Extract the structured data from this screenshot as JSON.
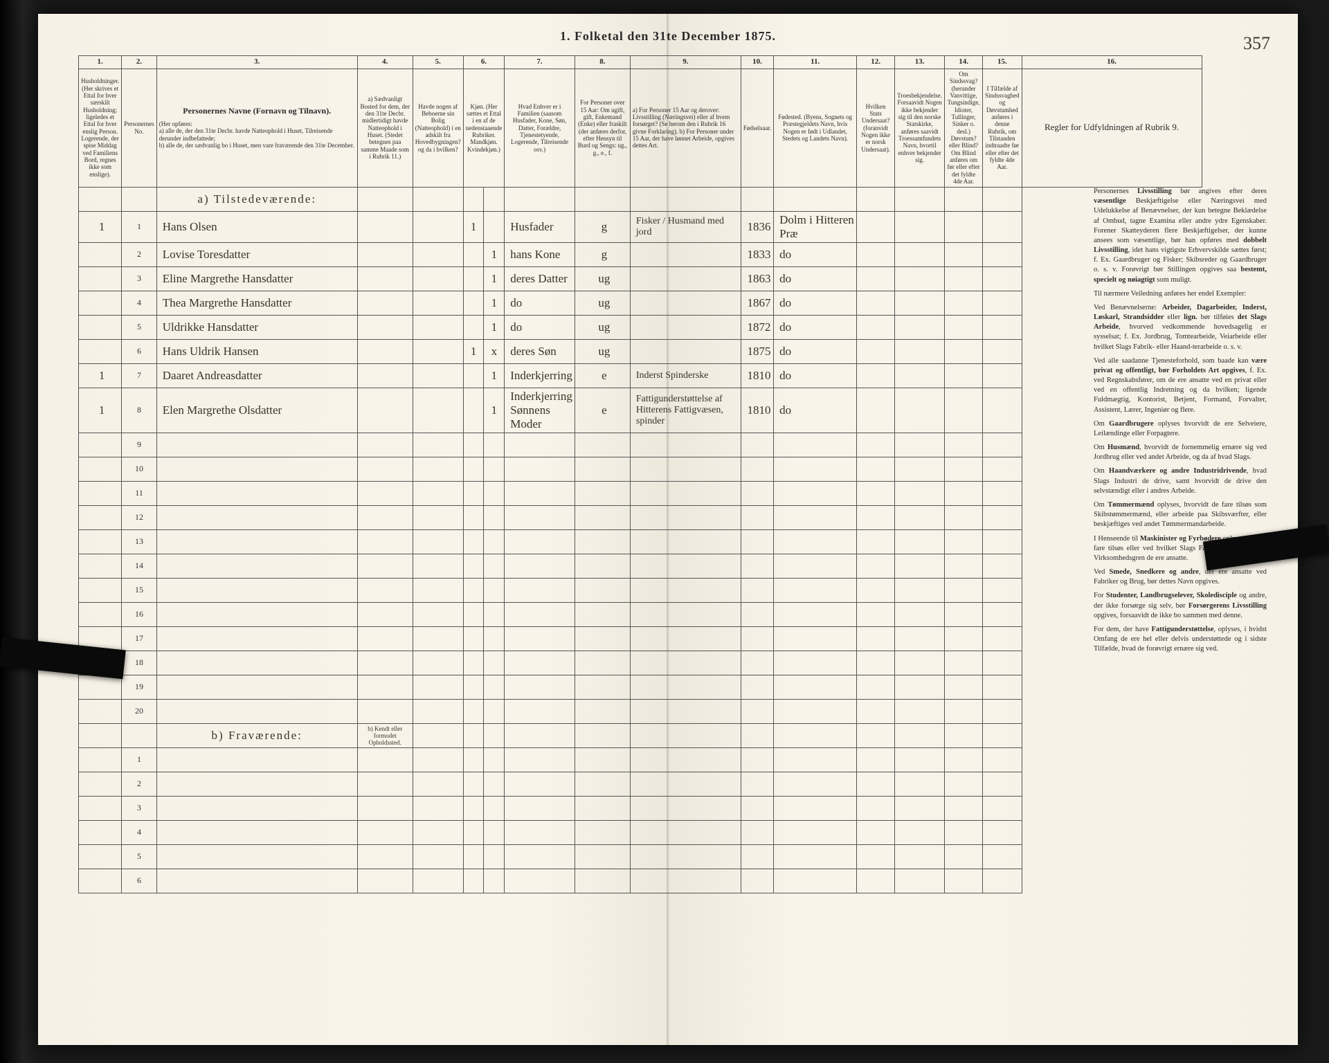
{
  "title": "1.  Folketal den 31te December 1875.",
  "page_number_handwritten": "357",
  "colors": {
    "paper": "#f5f1e6",
    "ink_print": "#2a2a2a",
    "ink_hand": "#3b3326",
    "rule": "#555555",
    "background": "#1a1a1a"
  },
  "column_numbers": [
    "1.",
    "2.",
    "3.",
    "4.",
    "5.",
    "6.",
    "7.",
    "8.",
    "9.",
    "10.",
    "11.",
    "12.",
    "13.",
    "14.",
    "15.",
    "16."
  ],
  "headers": {
    "c1": "Husholdninger. (Her skrives et Ettal for hver særskilt Husholdning; ligeledes et Ettal for hver enslig Person. Logerende, der spise Middag ved Familiens Bord, regnes ikke som enslige).",
    "c2": "Personernes No.",
    "c3_title": "Personernes Navne (Fornavn og Tilnavn).",
    "c3_sub": "(Her opføres:\na) alle de, der den 31te Decbr. havde Natteophold i Huset, Tilreisende derunder indbefattede;\nb) alle de, der sædvanlig bo i Huset, men vare fraværende den 31te December.",
    "c4": "a) Sædvanligt Bosted for dem, der den 31te Decbr. midlertidigt havde Natteophold i Huset. (Stedet betegnes paa samme Maade som i Rubrik 11.)",
    "c5": "Havde nogen af Beboerne sin Bolig (Natteophold) i en adskilt fra Hovedbygningen? og da i hvilken?",
    "c6": "Kjøn. (Her sættes et Ettal i en af de nedenstaaende Rubriker. Mandkjøn. Kvindekjøn.)",
    "c7": "Hvad Enhver er i Familien (saasom Husfader, Kone, Søn, Datter, Forældre, Tjenestetyende, Logerende, Tilreisende osv.)",
    "c8": "For Personer over 15 Aar: Om ugift, gift, Enkemand (Enke) eller fraskilt (der anføres derfor, efter Hensyn til Burd og Sengs: ug., g., e., f.",
    "c9": "a) For Personer 15 Aar og derover: Livsstilling (Næringsvei) eller af hvem forsørget? (Se herom den i Rubrik 16 givne Forklaring).\nb) For Personer under 15 Aar, der have lønnet Arbeide, opgives dettes Art.",
    "c10": "Fødselsaar.",
    "c11": "Fødested. (Byens, Sognets og Præstegjeldets Navn, hvis Nogen er født i Udlandet, Stedets og Landets Navn).",
    "c12": "Hvilken Stats Undersaat? (foranvidt Nogen ikke er norsk Undersaat).",
    "c13": "Troesbekjendelse. Forsaavidt Nogen ikke bekjender sig til den norske Statskirke, anføres saavidt Troessamfundets Navn, hvortil enhver bekjender sig.",
    "c14": "Om Sindssvag? (herunder Vanvittige, Tungsindige, Idioter, Tullinger, Sinker o. desl.) Døvstum? eller Blind? Om Blind anføres om før eller efter det fyldte 4de Aar.",
    "c15": "I Tilfælde af Sindssvaghed og Døvstumhed anføres i denne Rubrik, om Tilstanden indtraadte før eller efter det fyldte 4de Aar.",
    "c16": "Regler for Udfyldningen af Rubrik 9."
  },
  "section_a_label": "a) Tilstedeværende:",
  "section_b_label": "b) Fraværende:",
  "section_b_col4": "b) Kendt eller formodet Opholdssted.",
  "rows_a": [
    {
      "hh": "1",
      "no": "1",
      "name": "Hans Olsen",
      "mk": "1",
      "kk": "",
      "fam": "Husfader",
      "civ": "g",
      "occ": "Fisker / Husmand med jord",
      "yr": "1836",
      "born": "Dolm i Hitteren Præ",
      "col12": "",
      "col13": "",
      "col14": "",
      "col15": ""
    },
    {
      "hh": "",
      "no": "2",
      "name": "Lovise Toresdatter",
      "mk": "",
      "kk": "1",
      "fam": "hans Kone",
      "civ": "g",
      "occ": "",
      "yr": "1833",
      "born": "do",
      "col12": "",
      "col13": "",
      "col14": "",
      "col15": ""
    },
    {
      "hh": "",
      "no": "3",
      "name": "Eline Margrethe Hansdatter",
      "mk": "",
      "kk": "1",
      "fam": "deres Datter",
      "civ": "ug",
      "occ": "",
      "yr": "1863",
      "born": "do",
      "col12": "",
      "col13": "",
      "col14": "",
      "col15": ""
    },
    {
      "hh": "",
      "no": "4",
      "name": "Thea Margrethe Hansdatter",
      "mk": "",
      "kk": "1",
      "fam": "do",
      "civ": "ug",
      "occ": "",
      "yr": "1867",
      "born": "do",
      "col12": "",
      "col13": "",
      "col14": "",
      "col15": ""
    },
    {
      "hh": "",
      "no": "5",
      "name": "Uldrikke Hansdatter",
      "mk": "",
      "kk": "1",
      "fam": "do",
      "civ": "ug",
      "occ": "",
      "yr": "1872",
      "born": "do",
      "col12": "",
      "col13": "",
      "col14": "",
      "col15": ""
    },
    {
      "hh": "",
      "no": "6",
      "name": "Hans Uldrik Hansen",
      "mk": "1",
      "kk": "x",
      "fam": "deres Søn",
      "civ": "ug",
      "occ": "",
      "yr": "1875",
      "born": "do",
      "col12": "",
      "col13": "",
      "col14": "",
      "col15": ""
    },
    {
      "hh": "1",
      "no": "7",
      "name": "Daaret Andreasdatter",
      "mk": "",
      "kk": "1",
      "fam": "Inderkjerring",
      "civ": "e",
      "occ": "Inderst Spinderske",
      "yr": "1810",
      "born": "do",
      "col12": "",
      "col13": "",
      "col14": "",
      "col15": ""
    },
    {
      "hh": "1",
      "no": "8",
      "name": "Elen Margrethe Olsdatter",
      "mk": "",
      "kk": "1",
      "fam": "Inderkjerring Sønnens Moder",
      "civ": "e",
      "occ": "Fattigunderstøttelse af Hitterens Fattigvæsen, spinder",
      "yr": "1810",
      "born": "do",
      "col12": "",
      "col13": "",
      "col14": "",
      "col15": ""
    }
  ],
  "empty_a_rows": [
    "9",
    "10",
    "11",
    "12",
    "13",
    "14",
    "15",
    "16",
    "17",
    "18",
    "19",
    "20"
  ],
  "empty_b_rows": [
    "1",
    "2",
    "3",
    "4",
    "5",
    "6"
  ],
  "rules_paragraphs": [
    "Personernes <b>Livsstilling</b> bør angives efter deres <b>væsentlige</b> Beskjæftigelse eller Næringsvei med Udelukkelse af Benævnelser, der kun betegne Beklædelse af Ombud, tagne Examina eller andre ydre Egenskaber. Forener Skatteyderen flere Beskjæftigelser, der kunne ansees som væsentlige, bør han opføres med <b>dobbelt Livsstilling</b>, idet hans vigtigste Erhvervskilde sættes først; f. Ex. Gaardbruger og Fisker; Skibsreder og Gaardbruger o. s. v. Forøvrigt bør Stillingen opgives saa <b>bestemt, specielt og nøiagtigt</b> som muligt.",
    "Til nærmere Veiledning anføres her endel Exempler:",
    "Ved Benævnelserne: <b>Arbeider, Dagarbeider, Inderst, Løskarl, Strandsidder</b> eller <b>lign.</b> bør tilføies <b>det Slags Arbeide</b>, hvorved vedkommende hovedsagelig er sysselsat; f. Ex. Jordbrug, Tomtearbeide, Veiarbeide eller hvilket Slags Fabrik- eller Haand-terarbeide o. s. v.",
    "Ved alle saadanne Tjenesteforhold, som baade kan <b>være privat og offentligt, bør Forholdets Art opgives</b>, f. Ex. ved Regnskabsfører, om de ere ansatte ved en privat eller ved en offentlig Indretning og da hvilken; ligende Fuldmægtig, Kontorist, Betjent, Formand, Forvalter, Assistent, Lærer, Ingeniør og flere.",
    "Om <b>Gaardbrugere</b> oplyses hvorvidt de ere Selveiere, Leilændinge eller Forpagtere.",
    "Om <b>Husmænd</b>, hvorvidt de fornemmelig ernære sig ved Jordbrug eller ved andet Arbeide, og da af hvad Slags.",
    "Om <b>Haandværkere og andre Industridrivende</b>, hvad Slags Industri de drive, samt hvorvidt de drive den selvstændigt eller i andres Arbeide.",
    "Om <b>Tømmermænd</b> oplyses, hvorvidt de fare tilsøs som Skibstømmermænd, eller arbeide paa Skibsværfter, eller beskjæftiges ved andet Tømmermandarbeide.",
    "I Henseende til <b>Maskinister og Fyrbødere</b> oplyses, om de fare tilsøs eller ved hvilket Slags Fabrikdrift eller anden Virksomhedsgren de ere ansatte.",
    "Ved <b>Smede, Snedkere og andre</b>, der ere ansatte ved Fabriker og Brug, bør dettes Navn opgives.",
    "For <b>Studenter, Landbrugselever, Skoledisciple</b> og andre, der ikke forsørge sig selv, bør <b>Forsørgerens Livsstilling</b> opgives, forsaavidt de ikke bo sammen med denne.",
    "For dem, der have <b>Fattigunderstøttelse</b>, oplyses, i hvidst Omfang de ere hel eller delvis understøttede og i sidste Tilfælde, hvad de forøvrigt ernære sig ved."
  ]
}
